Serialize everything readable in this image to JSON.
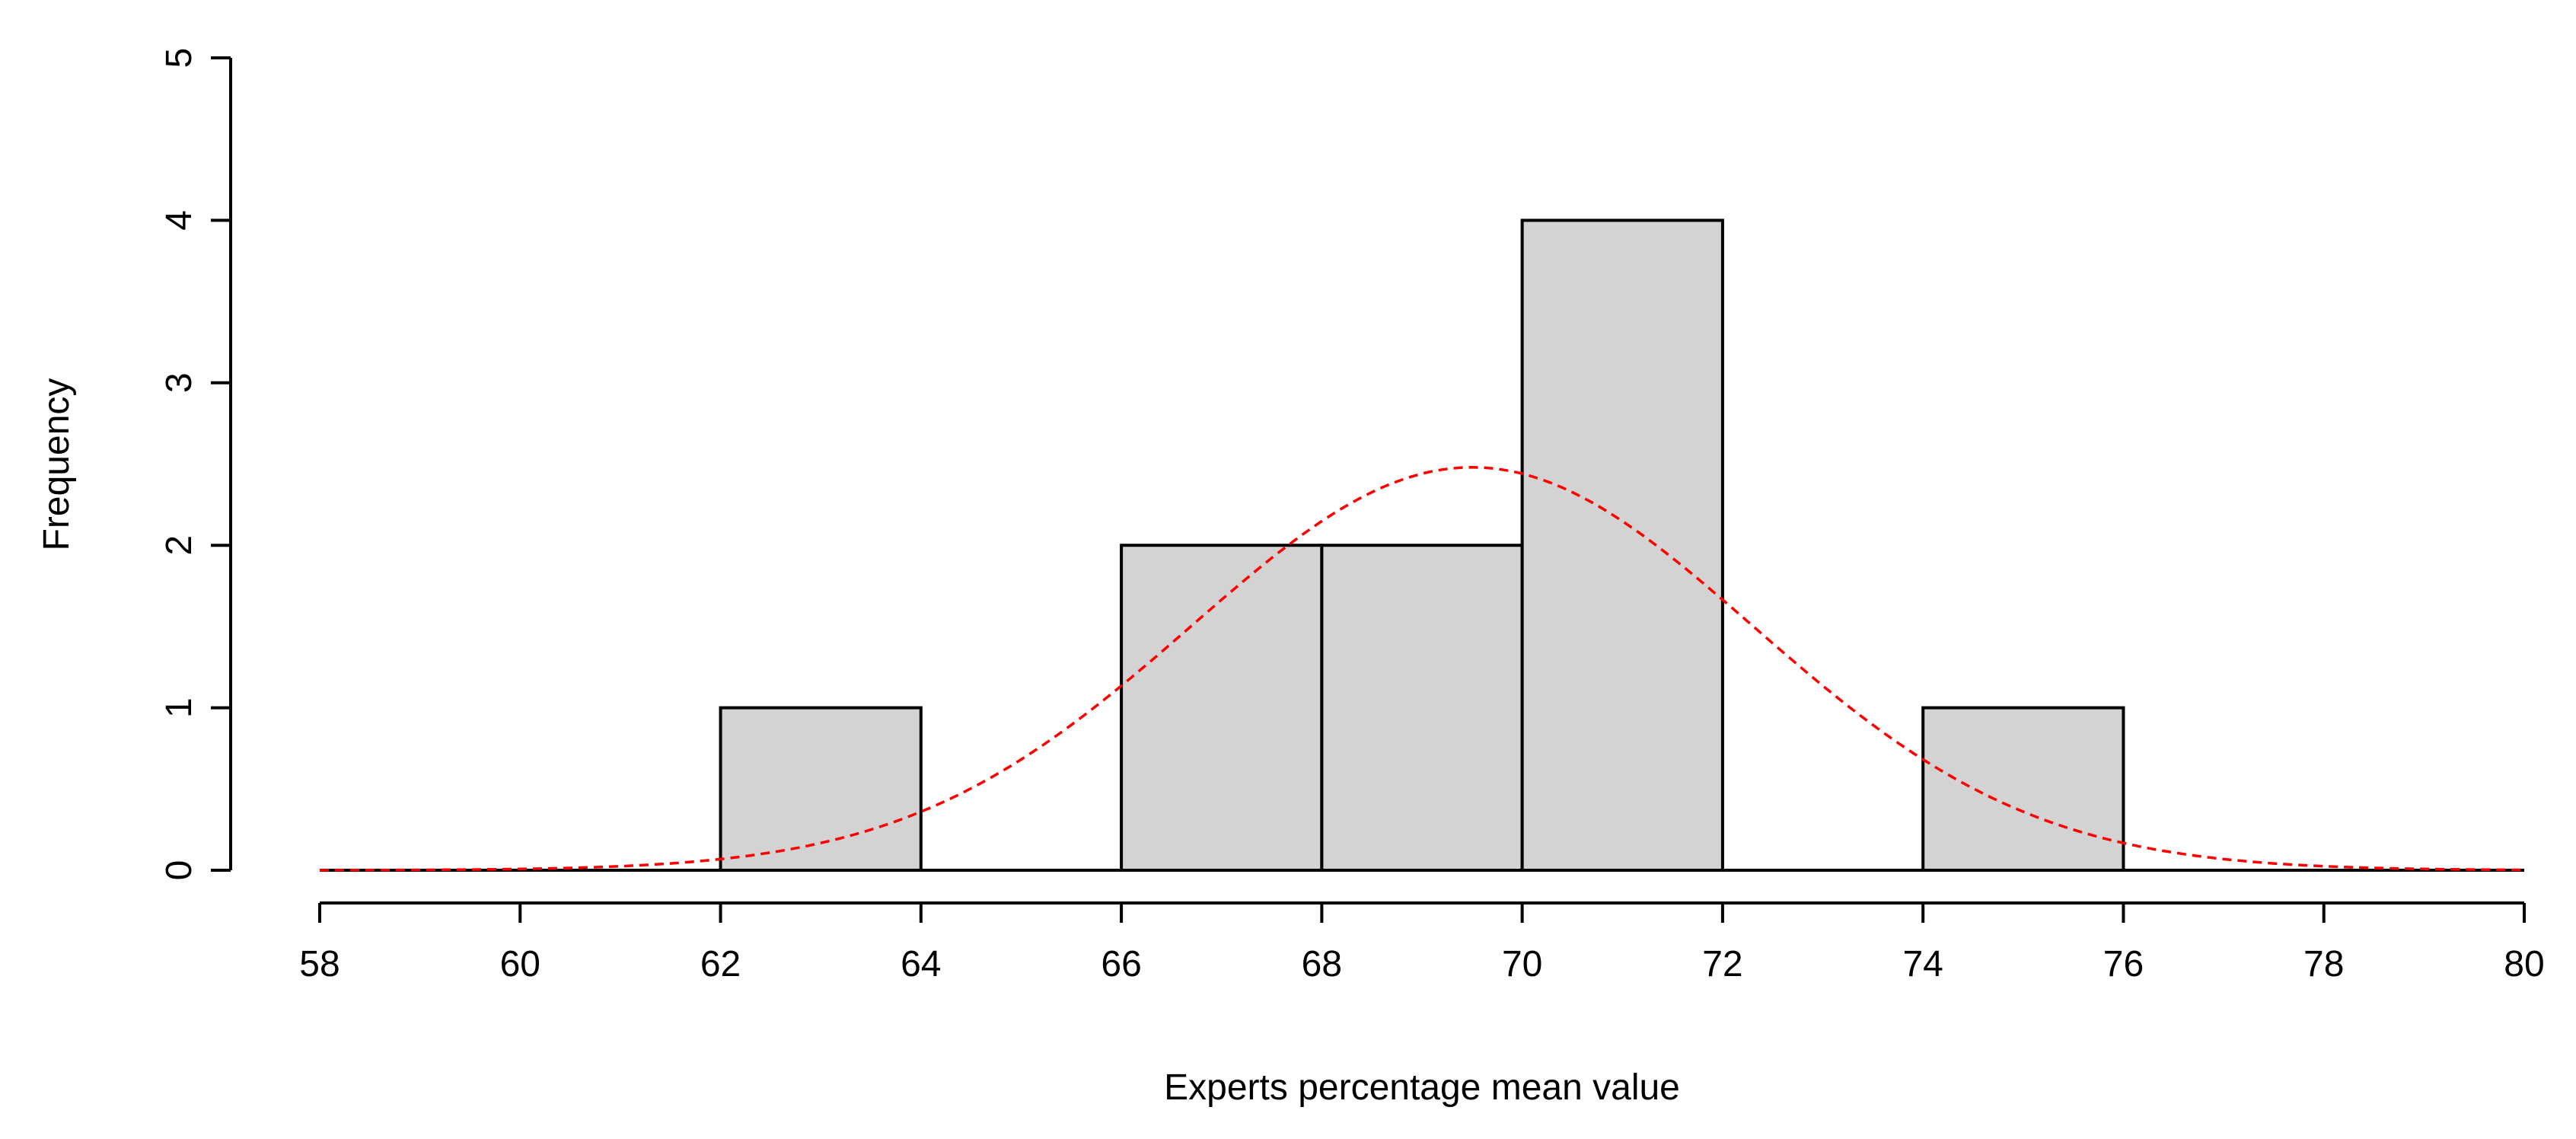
{
  "chart_data": {
    "type": "bar",
    "subtype": "histogram",
    "xlabel": "Experts percentage mean value",
    "ylabel": "Frequency",
    "xlim": [
      58,
      80
    ],
    "ylim": [
      0,
      5
    ],
    "x_ticks": [
      58,
      60,
      62,
      64,
      66,
      68,
      70,
      72,
      74,
      76,
      78,
      80
    ],
    "y_ticks": [
      0,
      1,
      2,
      3,
      4,
      5
    ],
    "bins": [
      {
        "from": 58,
        "to": 60,
        "count": 0
      },
      {
        "from": 60,
        "to": 62,
        "count": 0
      },
      {
        "from": 62,
        "to": 64,
        "count": 1
      },
      {
        "from": 64,
        "to": 66,
        "count": 0
      },
      {
        "from": 66,
        "to": 68,
        "count": 2
      },
      {
        "from": 68,
        "to": 70,
        "count": 2
      },
      {
        "from": 70,
        "to": 72,
        "count": 4
      },
      {
        "from": 72,
        "to": 74,
        "count": 0
      },
      {
        "from": 74,
        "to": 76,
        "count": 1
      },
      {
        "from": 76,
        "to": 78,
        "count": 0
      },
      {
        "from": 78,
        "to": 80,
        "count": 0
      }
    ],
    "density_curve": {
      "style": "dashed",
      "mean": 69.5,
      "sd": 2.8,
      "peak": 2.48
    },
    "colors": {
      "bar_fill": "#d3d3d3",
      "bar_stroke": "#000000",
      "curve": "#ff0000",
      "axis": "#000000"
    },
    "grid": false,
    "legend": "none"
  }
}
